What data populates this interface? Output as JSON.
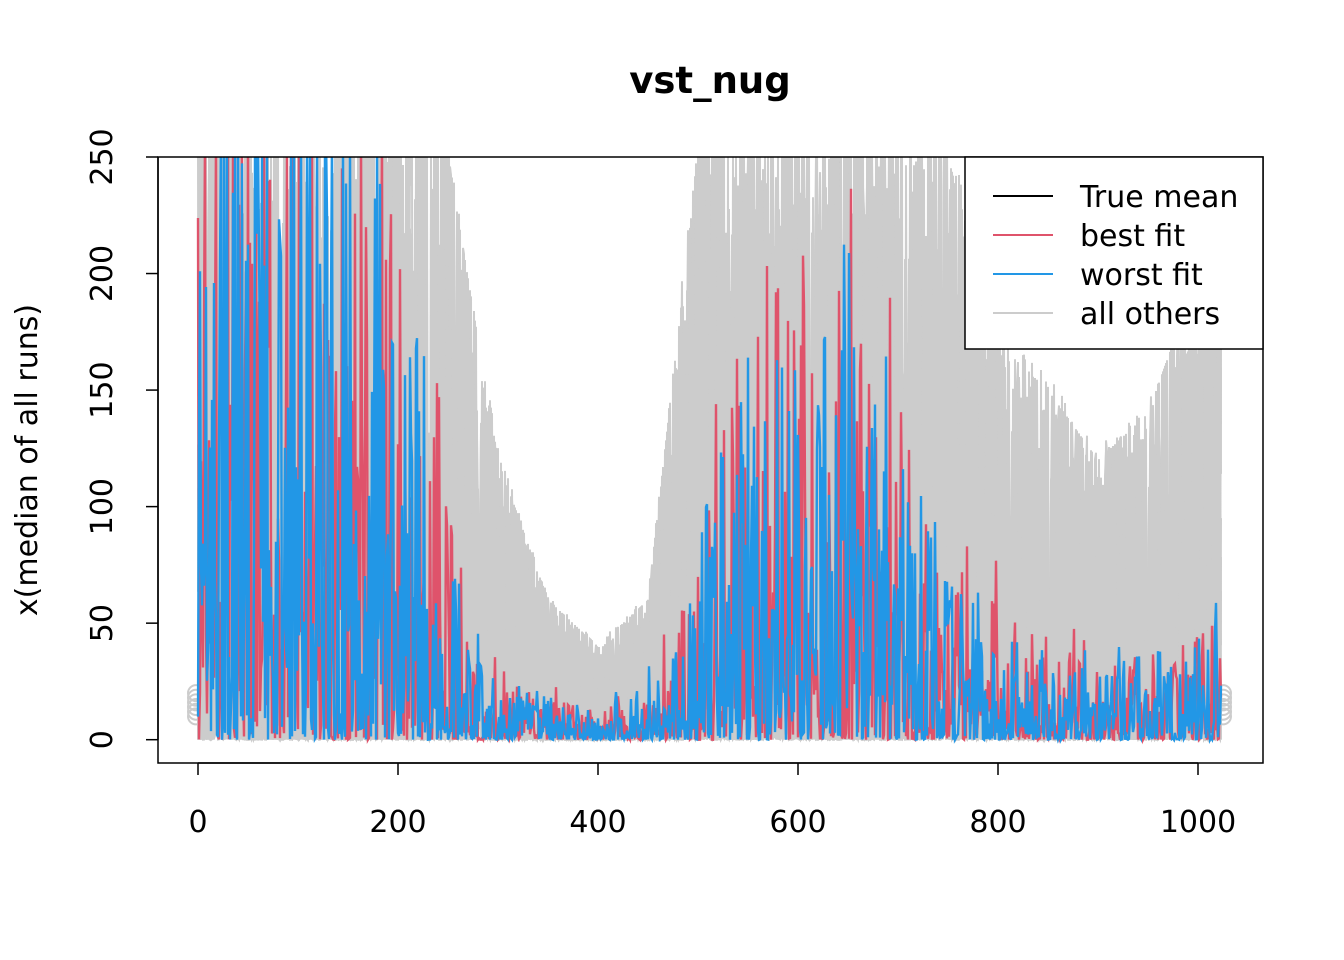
{
  "chart_data": {
    "type": "line",
    "title": "vst_nug",
    "xlabel": "",
    "ylabel": "x(median of all runs)",
    "xlim": [
      -40,
      1065
    ],
    "ylim": [
      -10,
      250
    ],
    "x_ticks": [
      0,
      200,
      400,
      600,
      800,
      1000
    ],
    "y_ticks": [
      0,
      50,
      100,
      150,
      200,
      250
    ],
    "n_points": 1024,
    "grid": false,
    "legend_position": "top-right",
    "legend": [
      {
        "label": "True mean",
        "color": "#000000"
      },
      {
        "label": "best fit",
        "color": "#DF536B"
      },
      {
        "label": "worst fit",
        "color": "#2297E6"
      },
      {
        "label": "all others",
        "color": "#CCCCCC"
      }
    ],
    "series": [
      {
        "name": "all others",
        "color": "#CCCCCC",
        "envelope": [
          {
            "x": 0,
            "low": 0,
            "high": 250
          },
          {
            "x": 50,
            "low": 0,
            "high": 250
          },
          {
            "x": 100,
            "low": 0,
            "high": 250
          },
          {
            "x": 150,
            "low": 0,
            "high": 250
          },
          {
            "x": 200,
            "low": 0,
            "high": 250
          },
          {
            "x": 250,
            "low": 0,
            "high": 250
          },
          {
            "x": 300,
            "low": 0,
            "high": 120
          },
          {
            "x": 350,
            "low": 0,
            "high": 60
          },
          {
            "x": 400,
            "low": 0,
            "high": 40
          },
          {
            "x": 450,
            "low": 0,
            "high": 60
          },
          {
            "x": 500,
            "low": 0,
            "high": 250
          },
          {
            "x": 550,
            "low": 0,
            "high": 250
          },
          {
            "x": 600,
            "low": 0,
            "high": 250
          },
          {
            "x": 650,
            "low": 0,
            "high": 250
          },
          {
            "x": 700,
            "low": 0,
            "high": 250
          },
          {
            "x": 750,
            "low": 0,
            "high": 250
          },
          {
            "x": 800,
            "low": 0,
            "high": 170
          },
          {
            "x": 850,
            "low": 0,
            "high": 150
          },
          {
            "x": 900,
            "low": 0,
            "high": 120
          },
          {
            "x": 950,
            "low": 0,
            "high": 140
          },
          {
            "x": 1000,
            "low": 0,
            "high": 200
          },
          {
            "x": 1023,
            "low": 0,
            "high": 250
          }
        ]
      },
      {
        "name": "best fit",
        "color": "#DF536B",
        "profile": [
          {
            "x": 0,
            "level": 120
          },
          {
            "x": 50,
            "level": 120
          },
          {
            "x": 100,
            "level": 110
          },
          {
            "x": 150,
            "level": 100
          },
          {
            "x": 200,
            "level": 90
          },
          {
            "x": 250,
            "level": 40
          },
          {
            "x": 300,
            "level": 10
          },
          {
            "x": 350,
            "level": 8
          },
          {
            "x": 400,
            "level": 5
          },
          {
            "x": 450,
            "level": 8
          },
          {
            "x": 500,
            "level": 30
          },
          {
            "x": 550,
            "level": 80
          },
          {
            "x": 600,
            "level": 90
          },
          {
            "x": 650,
            "level": 80
          },
          {
            "x": 700,
            "level": 60
          },
          {
            "x": 750,
            "level": 40
          },
          {
            "x": 800,
            "level": 25
          },
          {
            "x": 850,
            "level": 20
          },
          {
            "x": 900,
            "level": 12
          },
          {
            "x": 950,
            "level": 15
          },
          {
            "x": 1000,
            "level": 20
          },
          {
            "x": 1023,
            "level": 20
          }
        ]
      },
      {
        "name": "worst fit",
        "color": "#2297E6",
        "profile": [
          {
            "x": 0,
            "level": 140
          },
          {
            "x": 50,
            "level": 140
          },
          {
            "x": 100,
            "level": 130
          },
          {
            "x": 150,
            "level": 120
          },
          {
            "x": 200,
            "level": 100
          },
          {
            "x": 250,
            "level": 35
          },
          {
            "x": 300,
            "level": 12
          },
          {
            "x": 350,
            "level": 8
          },
          {
            "x": 400,
            "level": 5
          },
          {
            "x": 450,
            "level": 10
          },
          {
            "x": 500,
            "level": 35
          },
          {
            "x": 550,
            "level": 70
          },
          {
            "x": 600,
            "level": 80
          },
          {
            "x": 650,
            "level": 70
          },
          {
            "x": 700,
            "level": 50
          },
          {
            "x": 750,
            "level": 35
          },
          {
            "x": 800,
            "level": 20
          },
          {
            "x": 850,
            "level": 15
          },
          {
            "x": 900,
            "level": 12
          },
          {
            "x": 950,
            "level": 15
          },
          {
            "x": 1000,
            "level": 18
          },
          {
            "x": 1023,
            "level": 20
          }
        ]
      }
    ]
  }
}
